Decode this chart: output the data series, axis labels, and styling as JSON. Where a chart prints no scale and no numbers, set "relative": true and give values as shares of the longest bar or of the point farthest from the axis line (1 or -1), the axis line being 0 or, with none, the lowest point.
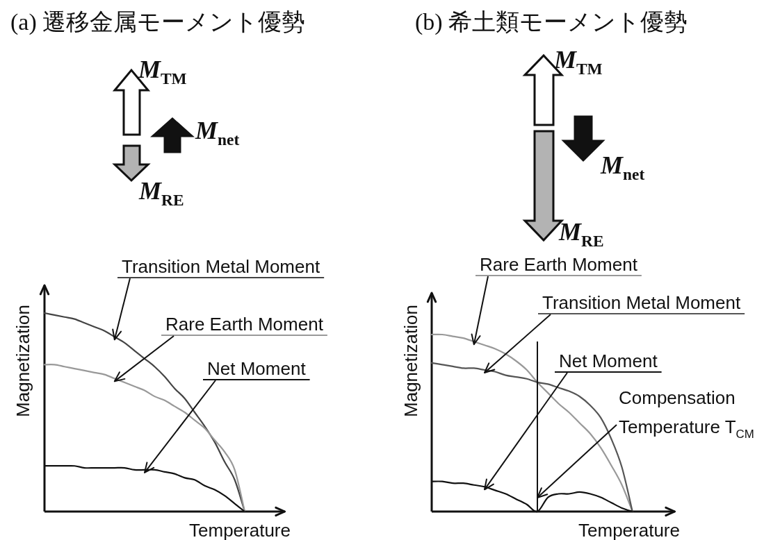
{
  "chart_data": [
    {
      "type": "line",
      "title": "(a) 遷移金属モーメント優勢",
      "xlabel": "Temperature",
      "ylabel": "Magnetization",
      "relative": true,
      "categories": [
        null,
        null,
        null,
        null,
        null,
        null,
        null,
        null,
        null,
        null,
        null,
        null,
        null,
        null,
        null,
        null,
        null,
        null,
        null,
        null,
        null,
        null,
        null,
        null,
        null
      ],
      "series": [
        {
          "name": "Transition Metal Moment",
          "color": "#444444",
          "values": [
            1.0,
            0.99,
            0.98,
            0.97,
            0.95,
            0.93,
            0.91,
            0.88,
            0.85,
            0.81,
            0.77,
            0.73,
            0.68,
            0.62,
            0.57,
            0.5,
            0.43,
            0.35,
            0.25,
            0.16,
            0,
            null,
            null,
            null,
            null
          ]
        },
        {
          "name": "Rare Earth Moment",
          "color": "#999999",
          "values": [
            0.74,
            0.74,
            0.73,
            0.72,
            0.71,
            0.7,
            0.69,
            0.67,
            0.65,
            0.63,
            0.61,
            0.58,
            0.56,
            0.53,
            0.5,
            0.46,
            0.42,
            0.36,
            0.3,
            0.21,
            0,
            null,
            null,
            null,
            null
          ]
        },
        {
          "name": "Net Moment",
          "color": "#111111",
          "values": [
            0.23,
            0.23,
            0.23,
            0.23,
            0.22,
            0.22,
            0.22,
            0.22,
            0.22,
            0.21,
            0.21,
            0.21,
            0.2,
            0.19,
            0.17,
            0.16,
            0.13,
            0.11,
            0.08,
            0.04,
            0,
            null,
            null,
            null,
            null
          ]
        }
      ],
      "annotations": [
        "M$_{TM}$",
        "M$_{net}$",
        "M$_{RE}$"
      ]
    },
    {
      "type": "line",
      "title": "(b) 希土類モーメント優勢",
      "xlabel": "Temperature",
      "ylabel": "Magnetization",
      "relative": true,
      "categories": [
        null,
        null,
        null,
        null,
        null,
        null,
        null,
        null,
        null,
        null,
        null,
        null,
        null,
        null,
        null,
        null,
        null,
        null,
        null,
        null,
        null,
        null,
        null,
        null
      ],
      "series": [
        {
          "name": "Rare Earth Moment",
          "color": "#999999",
          "values": [
            1.0,
            1.0,
            0.99,
            0.98,
            0.96,
            0.94,
            0.92,
            0.89,
            0.85,
            0.8,
            0.73,
            0.67,
            0.61,
            0.56,
            0.5,
            0.44,
            0.36,
            0.26,
            0.15,
            0,
            null,
            null,
            null,
            null
          ]
        },
        {
          "name": "Transition Metal Moment",
          "color": "#555555",
          "values": [
            0.84,
            0.83,
            0.82,
            0.81,
            0.81,
            0.8,
            0.79,
            0.77,
            0.76,
            0.75,
            0.73,
            0.72,
            0.7,
            0.68,
            0.65,
            0.6,
            0.53,
            0.41,
            0.25,
            0,
            null,
            null,
            null,
            null
          ]
        },
        {
          "name": "Net Moment",
          "color": "#111111",
          "values": [
            0.17,
            0.17,
            0.16,
            0.16,
            0.15,
            0.14,
            0.12,
            0.1,
            0.07,
            0.04,
            0,
            0.08,
            0.1,
            0.1,
            0.11,
            0.1,
            0.08,
            0.05,
            0.02,
            0,
            null,
            null,
            null,
            null
          ]
        }
      ],
      "annotations": [
        "M$_{TM}$",
        "M$_{net}$",
        "M$_{RE}$",
        "Compensation Temperature T$_{CM}$"
      ]
    }
  ]
}
